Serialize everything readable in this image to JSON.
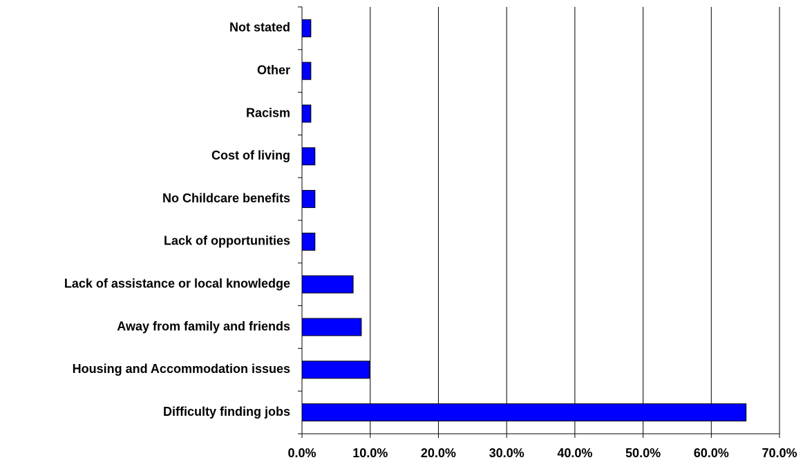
{
  "chart_data": {
    "type": "hbar",
    "categories": [
      "Not stated",
      "Other",
      "Racism",
      "Cost of living",
      "No Childcare benefits",
      "Lack of opportunities",
      "Lack of assistance or local knowledge",
      "Away from family and friends",
      "Housing and Accommodation issues",
      "Difficulty finding jobs"
    ],
    "values": [
      1.3,
      1.3,
      1.3,
      1.9,
      1.9,
      1.9,
      7.5,
      8.7,
      9.9,
      65.1
    ],
    "color": "#0000ff",
    "xlim": [
      0,
      70
    ],
    "xticks": [
      {
        "value": 0,
        "label": "0.0%"
      },
      {
        "value": 10,
        "label": "10.0%"
      },
      {
        "value": 20,
        "label": "20.0%"
      },
      {
        "value": 30,
        "label": "30.0%"
      },
      {
        "value": 40,
        "label": "40.0%"
      },
      {
        "value": 50,
        "label": "50.0%"
      },
      {
        "value": 60,
        "label": "60.0%"
      },
      {
        "value": 70,
        "label": "70.0%"
      }
    ],
    "grid": true
  }
}
